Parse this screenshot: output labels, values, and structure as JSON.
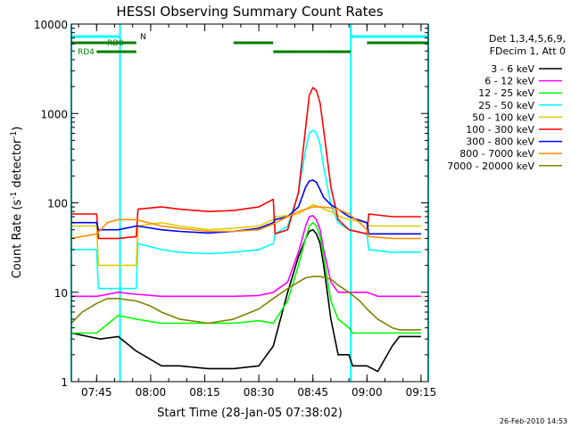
{
  "chart_data": {
    "type": "line",
    "title": "HESSI Observing Summary Count Rates",
    "xlabel": "Start Time (28-Jan-05 07:38:02)",
    "ylabel_main": "Count Rate (s",
    "ylabel_sup1": "-1",
    "ylabel_mid": " detector",
    "ylabel_sup2": "-1",
    "ylabel_end": ")",
    "y_scale": "log",
    "ylim": [
      1,
      10000
    ],
    "xlim_minutes": [
      0,
      99
    ],
    "x_tick_labels": [
      "07:45",
      "08:00",
      "08:15",
      "08:30",
      "08:45",
      "09:00",
      "09:15"
    ],
    "x_tick_minutes": [
      7,
      22,
      37,
      52,
      67,
      82,
      97
    ],
    "y_tick_labels": [
      "1",
      "10",
      "100",
      "1000",
      "10000"
    ],
    "y_tick_values": [
      1,
      10,
      100,
      1000,
      10000
    ],
    "legend_header": [
      "Det 1,3,4,5,6,9,",
      "FDecim 1, Att 0"
    ],
    "legend_position": "right",
    "footer_date": "26-Feb-2010 14:53",
    "flag_labels": {
      "N": "N",
      "RD0": "RD0",
      "RD4": "RD4"
    },
    "night_intervals_minutes": [
      [
        0,
        13.5
      ],
      [
        77.5,
        99
      ]
    ],
    "saa_lines_minutes": [
      13.5,
      77.5
    ],
    "flag_N_segments_minutes": [
      [
        0,
        13.5
      ],
      [
        77.5,
        99
      ]
    ],
    "flag_RD0_segments_minutes": [
      [
        0,
        18
      ],
      [
        45,
        56
      ],
      [
        82,
        99
      ]
    ],
    "flag_RD4_segments_minutes": [
      [
        7,
        18
      ],
      [
        56,
        77.5
      ]
    ],
    "series": [
      {
        "name": "3 - 6 keV",
        "color": "#000000",
        "x": [
          0,
          8,
          13,
          18,
          25,
          30,
          38,
          45,
          52,
          56,
          60,
          63,
          65,
          66,
          67,
          68,
          69,
          70,
          72,
          74,
          77,
          78,
          82,
          85,
          89,
          91,
          97
        ],
        "y": [
          3.5,
          3.0,
          3.2,
          2.2,
          1.5,
          1.5,
          1.4,
          1.4,
          1.5,
          2.5,
          10,
          25,
          40,
          48,
          50,
          45,
          35,
          20,
          5,
          2,
          2,
          1.5,
          1.5,
          1.3,
          2.5,
          3.2,
          3.2
        ]
      },
      {
        "name": "6 - 12 keV",
        "color": "#ff00ff",
        "x": [
          0,
          7,
          13,
          18,
          25,
          30,
          38,
          45,
          52,
          56,
          60,
          63,
          65,
          66,
          67,
          68,
          69,
          70,
          72,
          74,
          77,
          78,
          82,
          85,
          89,
          91,
          97
        ],
        "y": [
          9,
          9,
          10,
          9.5,
          9,
          9,
          9,
          9,
          9.2,
          10,
          13,
          28,
          55,
          70,
          72,
          65,
          50,
          30,
          13,
          10,
          10,
          10,
          10,
          9,
          9,
          9,
          9
        ]
      },
      {
        "name": "12 - 25 keV",
        "color": "#00ff00",
        "x": [
          0,
          7,
          13,
          18,
          25,
          30,
          38,
          45,
          52,
          56,
          60,
          63,
          65,
          66,
          67,
          68,
          69,
          70,
          72,
          74,
          77,
          78,
          82,
          85,
          89,
          91,
          97
        ],
        "y": [
          3.5,
          3.5,
          5.5,
          5,
          4.5,
          4.5,
          4.5,
          4.5,
          4.8,
          4.5,
          8,
          20,
          40,
          55,
          60,
          55,
          42,
          25,
          8,
          5,
          4,
          3.5,
          3.5,
          3.5,
          3.5,
          3.5,
          3.5
        ]
      },
      {
        "name": "25 - 50 keV",
        "color": "#00ffff",
        "x": [
          0,
          7,
          7.5,
          12,
          13,
          18,
          18.5,
          25,
          30,
          38,
          45,
          52,
          56,
          56.5,
          60,
          63,
          65,
          66,
          67,
          68,
          69,
          70,
          72,
          74,
          77,
          82,
          82.5,
          89,
          89.5,
          97
        ],
        "y": [
          30,
          30,
          11,
          11,
          11,
          11,
          35,
          30,
          28,
          27,
          28,
          30,
          35,
          45,
          55,
          130,
          400,
          600,
          650,
          600,
          450,
          250,
          95,
          60,
          50,
          45,
          30,
          28,
          28,
          28
        ]
      },
      {
        "name": "50 - 100 keV",
        "color": "#ddcc00",
        "x": [
          0,
          7,
          7.5,
          13,
          18,
          18.5,
          25,
          30,
          38,
          45,
          52,
          56,
          56.5,
          60,
          63,
          65,
          67,
          69,
          70,
          72,
          74,
          77,
          82,
          82.5,
          89,
          89.5,
          97
        ],
        "y": [
          55,
          55,
          20,
          20,
          20,
          55,
          60,
          55,
          50,
          52,
          55,
          65,
          70,
          72,
          75,
          85,
          95,
          90,
          85,
          80,
          72,
          65,
          60,
          55,
          55,
          55,
          55
        ]
      },
      {
        "name": "100 - 300 keV",
        "color": "#ff0000",
        "x": [
          0,
          7,
          7.5,
          13,
          18,
          18.5,
          25,
          30,
          38,
          45,
          52,
          56,
          56.5,
          60,
          63,
          65,
          66,
          67,
          68,
          69,
          70,
          72,
          74,
          77,
          82,
          82.5,
          89,
          89.5,
          97
        ],
        "y": [
          75,
          75,
          40,
          40,
          42,
          85,
          90,
          85,
          80,
          82,
          90,
          110,
          45,
          50,
          130,
          700,
          1600,
          1950,
          1800,
          1300,
          650,
          150,
          65,
          50,
          45,
          75,
          70,
          70,
          70
        ]
      },
      {
        "name": "300 - 800 keV",
        "color": "#0000ff",
        "x": [
          0,
          7,
          7.5,
          13,
          18,
          18.5,
          25,
          30,
          38,
          45,
          52,
          56,
          56.5,
          60,
          63,
          65,
          66,
          67,
          68,
          69,
          70,
          72,
          74,
          77,
          82,
          82.5,
          89,
          89.5,
          97
        ],
        "y": [
          60,
          60,
          50,
          50,
          55,
          55,
          50,
          48,
          46,
          48,
          52,
          60,
          65,
          70,
          90,
          150,
          175,
          180,
          170,
          140,
          115,
          95,
          85,
          70,
          60,
          45,
          45,
          45,
          45
        ]
      },
      {
        "name": "800 - 7000 keV",
        "color": "#ff8c00",
        "x": [
          0,
          7,
          10,
          13,
          18,
          25,
          30,
          38,
          45,
          52,
          56,
          60,
          63,
          65,
          67,
          69,
          72,
          74,
          77,
          80,
          82,
          82.5,
          89,
          89.5,
          97
        ],
        "y": [
          40,
          45,
          60,
          65,
          65,
          55,
          52,
          48,
          48,
          50,
          58,
          70,
          80,
          85,
          90,
          90,
          88,
          85,
          75,
          60,
          50,
          42,
          40,
          40,
          40
        ]
      },
      {
        "name": "7000 - 20000 keV",
        "color": "#808000",
        "x": [
          0,
          3,
          7,
          10,
          13,
          18,
          22,
          25,
          30,
          38,
          45,
          52,
          56,
          60,
          63,
          65,
          67,
          69,
          72,
          74,
          77,
          80,
          82,
          85,
          89,
          91,
          97
        ],
        "y": [
          4.5,
          6,
          7.5,
          8.5,
          8.5,
          8,
          7,
          6,
          5,
          4.5,
          5,
          6.5,
          8.5,
          11,
          13,
          14.5,
          15,
          15,
          14,
          12,
          10,
          8,
          6.5,
          5,
          4,
          3.8,
          3.8
        ]
      }
    ]
  }
}
